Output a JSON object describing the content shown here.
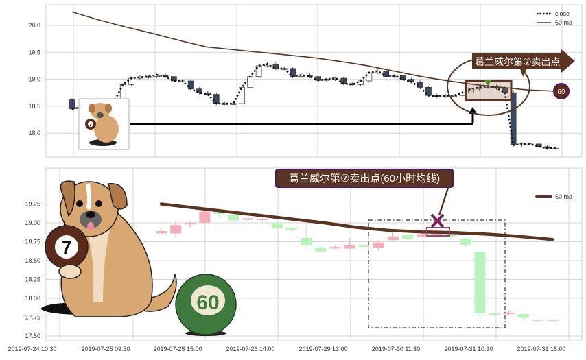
{
  "chart_data": [
    {
      "type": "candlestick",
      "title": "",
      "xlabel": "",
      "ylabel": "",
      "ylim": [
        17.6,
        20.4
      ],
      "yticks": [
        "20.0",
        "19.5",
        "19.0",
        "18.5",
        "18.0"
      ],
      "grid": true,
      "legend_placement": "top-right",
      "legend": [
        {
          "label": "close",
          "style": "dotted",
          "color": "#111111"
        },
        {
          "label": "60 ma",
          "style": "solid",
          "color": "#5a3420"
        }
      ],
      "colors": {
        "down": "#3b4a63",
        "up": "#ffffff",
        "ma": "#5a3420"
      },
      "close": [
        18.45,
        18.48,
        18.45,
        18.5,
        18.55,
        18.6,
        18.9,
        19.02,
        19.04,
        19.05,
        19.08,
        19.05,
        18.97,
        18.97,
        18.82,
        18.75,
        18.72,
        18.55,
        18.55,
        18.55,
        18.85,
        19.05,
        19.25,
        19.28,
        19.2,
        19.2,
        19.05,
        19.08,
        19.05,
        18.98,
        19.0,
        19.02,
        18.92,
        18.9,
        18.97,
        19.12,
        19.15,
        19.05,
        19.07,
        19.0,
        18.95,
        18.85,
        18.7,
        18.68,
        18.7,
        18.7,
        18.75,
        18.82,
        18.85,
        18.87,
        18.84,
        18.75,
        17.78,
        17.8,
        17.8,
        17.75,
        17.72,
        17.72
      ],
      "ma_60": [
        20.25,
        20.1,
        19.97,
        19.85,
        19.72,
        19.6,
        19.55,
        19.5,
        19.45,
        19.4,
        19.33,
        19.25,
        19.15,
        19.05,
        18.97,
        18.9,
        18.85,
        18.8,
        18.78
      ],
      "annotations": {
        "label": "葛兰威尔第⑦卖出点",
        "badge": "60"
      }
    },
    {
      "type": "candlestick",
      "title": "",
      "xlabel": "",
      "ylabel": "",
      "ylim": [
        17.45,
        19.45
      ],
      "yticks": [
        "19.25",
        "19.00",
        "18.75",
        "18.50",
        "18.25",
        "18.00",
        "17.75",
        "17.50"
      ],
      "xticks": [
        "2019-07-24 10:30",
        "2019-07-25 09:30",
        "2019-07-25 15:00",
        "2019-07-26 14:00",
        "2019-07-29 13:00",
        "2019-07-30 11:30",
        "2019-07-31 10:30",
        "2019-07-31 15:00"
      ],
      "grid": true,
      "legend_placement": "top-right",
      "legend": [
        {
          "label": "60 ma",
          "style": "thick-solid",
          "color": "#5a3420"
        }
      ],
      "colors": {
        "up": "#f4aeb9",
        "down": "#b6f5b9",
        "ma": "#5a3420",
        "marker": "#7a1e5e"
      },
      "candles": [
        [
          18.86,
          18.89,
          18.93,
          18.85
        ],
        [
          18.86,
          18.97,
          19.03,
          18.8
        ],
        [
          18.98,
          19.0,
          19.02,
          18.94
        ],
        [
          19.0,
          19.15,
          19.18,
          18.99
        ],
        [
          19.16,
          19.12,
          19.2,
          19.07
        ],
        [
          19.11,
          19.03,
          19.12,
          19.02
        ],
        [
          19.04,
          19.06,
          19.08,
          19.03
        ],
        [
          19.04,
          19.05,
          19.07,
          19.02
        ],
        [
          19.0,
          18.93,
          19.01,
          18.92
        ],
        [
          18.93,
          18.9,
          18.94,
          18.88
        ],
        [
          18.8,
          18.7,
          18.97,
          18.68
        ],
        [
          18.67,
          18.62,
          18.69,
          18.6
        ],
        [
          18.66,
          18.68,
          18.7,
          18.65
        ],
        [
          18.66,
          18.7,
          18.8,
          18.65
        ],
        [
          18.7,
          18.68,
          18.72,
          18.67
        ],
        [
          18.67,
          18.74,
          18.77,
          18.63
        ],
        [
          18.77,
          18.82,
          18.91,
          18.75
        ],
        [
          18.84,
          18.79,
          18.85,
          18.77
        ],
        [
          18.82,
          18.85,
          18.87,
          18.8
        ],
        [
          18.83,
          18.88,
          18.9,
          18.82
        ],
        [
          18.85,
          18.82,
          18.86,
          18.78
        ],
        [
          18.79,
          18.71,
          18.8,
          18.67
        ],
        [
          18.61,
          17.8,
          18.61,
          17.67
        ],
        [
          17.8,
          17.78,
          17.8,
          17.75
        ],
        [
          17.79,
          17.81,
          17.83,
          17.77
        ],
        [
          17.79,
          17.74,
          17.81,
          17.7
        ],
        [
          17.71,
          17.7,
          17.71,
          17.7
        ],
        [
          17.71,
          17.7,
          17.71,
          17.7
        ]
      ],
      "ma_60": [
        19.25,
        19.2,
        19.15,
        19.1,
        19.05,
        19.0,
        18.94,
        18.9,
        18.88,
        18.87,
        18.85,
        18.82,
        18.78
      ],
      "annotations": {
        "label": "葛兰威尔第⑦卖出点(60小时均线)",
        "badge": "60",
        "ball_number": "7"
      }
    }
  ]
}
